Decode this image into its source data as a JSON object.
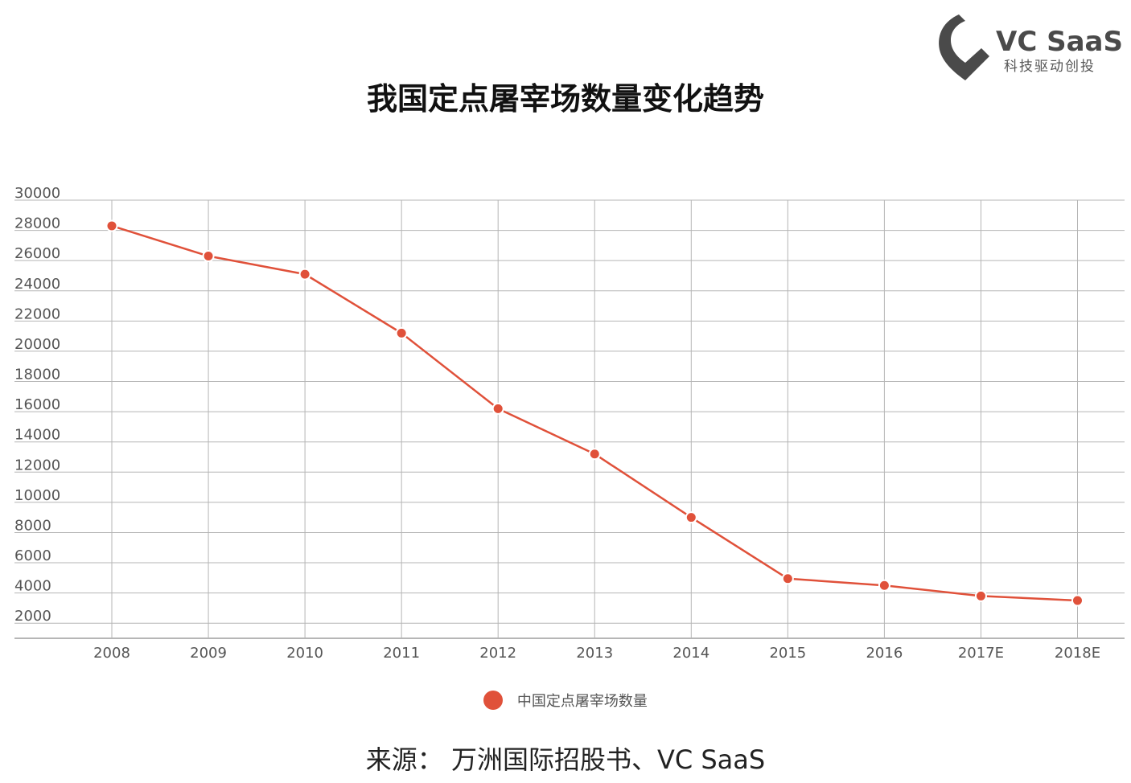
{
  "logo": {
    "name": "VC SaaS",
    "tagline": "科技驱动创投",
    "icon": "vc-saas-logo-icon",
    "color": "#4a4a4a"
  },
  "chart_data": {
    "type": "line",
    "title": "我国定点屠宰场数量变化趋势",
    "categories": [
      "2008",
      "2009",
      "2010",
      "2011",
      "2012",
      "2013",
      "2014",
      "2015",
      "2016",
      "2017E",
      "2018E"
    ],
    "series": [
      {
        "name": "中国定点屠宰场数量",
        "values": [
          28300,
          26300,
          25100,
          21200,
          16200,
          13200,
          9000,
          4950,
          4500,
          3800,
          3500
        ],
        "color": "#e0513a"
      }
    ],
    "y_ticks": [
      "2000",
      "4000",
      "6000",
      "8000",
      "10000",
      "12000",
      "14000",
      "16000",
      "18000",
      "20000",
      "22000",
      "24000",
      "26000",
      "28000",
      "30000"
    ],
    "ylim": [
      1000,
      30000
    ],
    "xlabel": "",
    "ylabel": "",
    "grid": true,
    "legend_position": "bottom"
  },
  "source": "来源： 万洲国际招股书、VC SaaS"
}
